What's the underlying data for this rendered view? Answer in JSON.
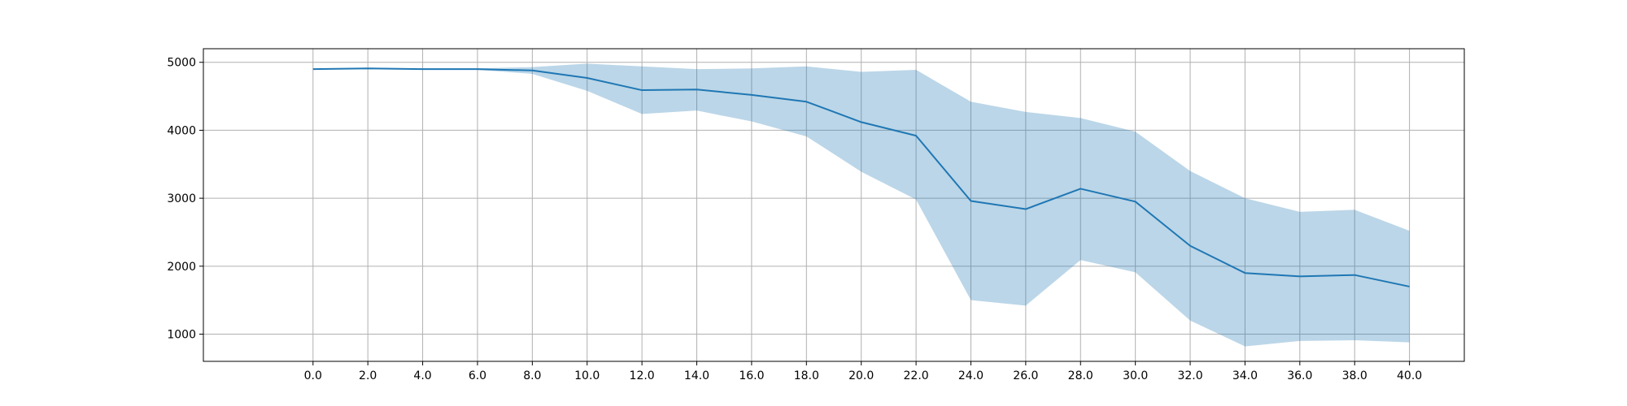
{
  "chart_data": {
    "type": "area",
    "title": "",
    "xlabel": "",
    "ylabel": "",
    "grid": true,
    "legend": "none",
    "xlim": [
      -4.0,
      42.0
    ],
    "ylim": [
      600,
      5200
    ],
    "x": [
      0.0,
      2.0,
      4.0,
      6.0,
      8.0,
      10.0,
      12.0,
      14.0,
      16.0,
      18.0,
      20.0,
      22.0,
      24.0,
      26.0,
      28.0,
      30.0,
      32.0,
      34.0,
      36.0,
      38.0,
      40.0
    ],
    "x_tick_labels": [
      "0.0",
      "2.0",
      "4.0",
      "6.0",
      "8.0",
      "10.0",
      "12.0",
      "14.0",
      "16.0",
      "18.0",
      "20.0",
      "22.0",
      "24.0",
      "26.0",
      "28.0",
      "30.0",
      "32.0",
      "34.0",
      "36.0",
      "38.0",
      "40.0"
    ],
    "y_ticks": [
      1000,
      2000,
      3000,
      4000,
      5000
    ],
    "y_tick_labels": [
      "1000",
      "2000",
      "3000",
      "4000",
      "5000"
    ],
    "series": [
      {
        "values": [
          4900,
          4910,
          4900,
          4900,
          4880,
          4770,
          4590,
          4600,
          4520,
          4420,
          4120,
          3920,
          2960,
          2840,
          3140,
          2950,
          2300,
          1900,
          1850,
          1870,
          1700
        ],
        "color": "#1f77b4"
      }
    ],
    "band": {
      "upper": [
        4900,
        4910,
        4910,
        4910,
        4930,
        4980,
        4940,
        4900,
        4910,
        4940,
        4860,
        4890,
        4420,
        4270,
        4180,
        3980,
        3400,
        3000,
        2800,
        2830,
        2520
      ],
      "lower": [
        4900,
        4910,
        4890,
        4890,
        4830,
        4580,
        4240,
        4290,
        4130,
        3910,
        3390,
        2980,
        1500,
        1420,
        2090,
        1910,
        1200,
        820,
        900,
        910,
        880
      ],
      "color": "#1f77b4",
      "opacity": 0.3
    }
  }
}
